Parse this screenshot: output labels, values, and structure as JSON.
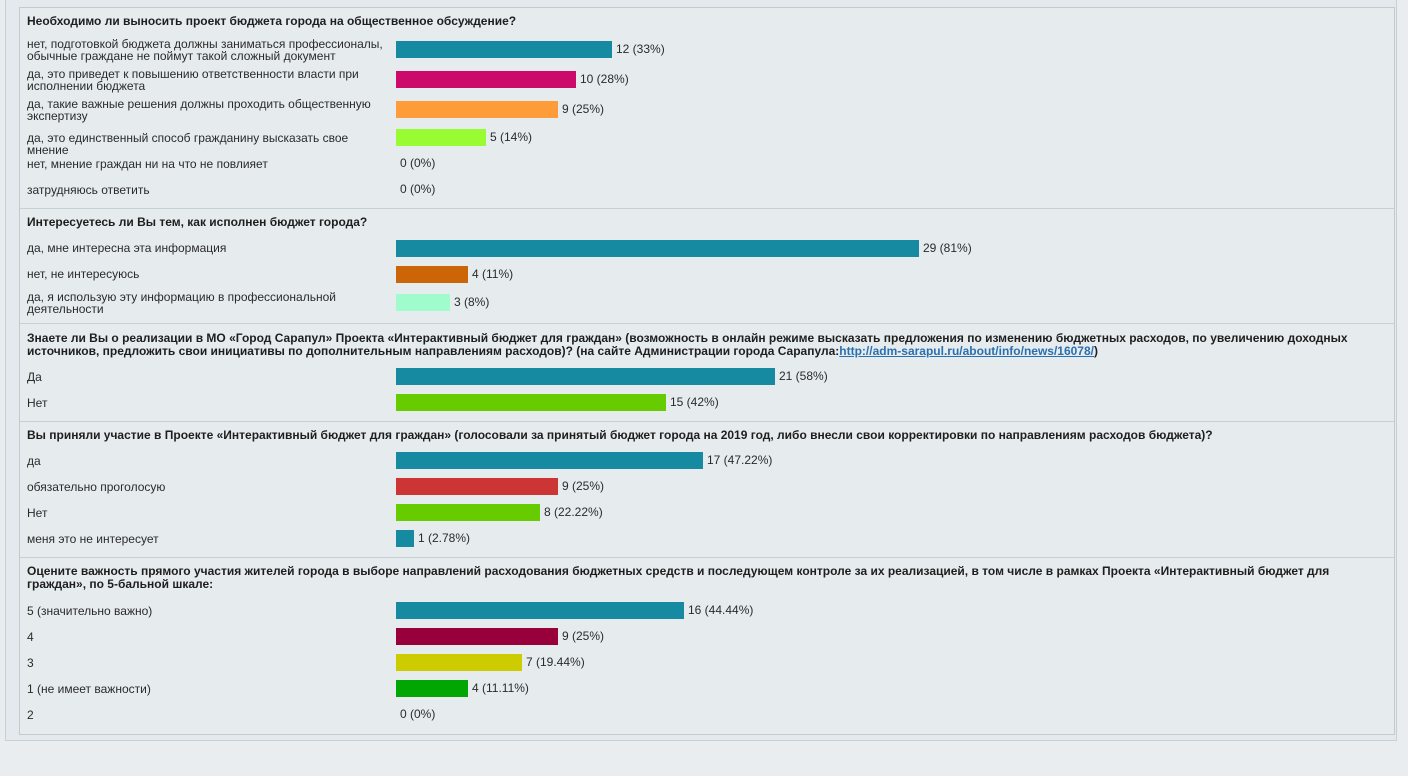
{
  "questions": [
    {
      "title": "Необходимо ли выносить проект бюджета города на общественное обсуждение?",
      "answers": [
        {
          "label": "нет, подготовкой бюджета должны заниматься профессионалы, обычные граждане не поймут такой сложный документ",
          "count": 12,
          "value_text": "12 (33%)",
          "color": "#168aa0"
        },
        {
          "label": "да, это приведет к повышению ответственности власти при исполнении бюджета",
          "count": 10,
          "value_text": "10 (28%)",
          "color": "#cc0a6c"
        },
        {
          "label": "да, такие важные решения должны проходить общественную экспертизу",
          "count": 9,
          "value_text": "9 (25%)",
          "color": "#fd9c39"
        },
        {
          "label": "да, это единственный способ гражданину высказать свое мнение",
          "count": 5,
          "value_text": "5 (14%)",
          "color": "#99fc32"
        },
        {
          "label": "нет, мнение граждан ни на что не повлияет",
          "count": 0,
          "value_text": "0 (0%)",
          "color": "#168aa0"
        },
        {
          "label": "затрудняюсь ответить",
          "count": 0,
          "value_text": "0 (0%)",
          "color": "#168aa0"
        }
      ]
    },
    {
      "title": "Интересуетесь ли Вы тем, как исполнен бюджет города?",
      "answers": [
        {
          "label": "да, мне интересна эта информация",
          "count": 29,
          "value_text": "29 (81%)",
          "color": "#168aa0"
        },
        {
          "label": "нет, не интересуюсь",
          "count": 4,
          "value_text": "4 (11%)",
          "color": "#cc6508"
        },
        {
          "label": "да, я использую эту информацию в профессиональной деятельности",
          "count": 3,
          "value_text": "3 (8%)",
          "color": "#a1fccd"
        }
      ]
    },
    {
      "title": "Знаете ли Вы о реализации в МО «Город Сарапул» Проекта «Интерактивный бюджет для граждан» (возможность в онлайн режиме высказать предложения по изменению бюджетных расходов, по увеличению доходных источников, предложить свои инициативы по дополнительным направлениям расходов)?  (на сайте Администрации города Сарапула:",
      "link": "http://adm-sarapul.ru/about/info/news/16078/",
      "title_suffix": ")",
      "answers": [
        {
          "label": "Да",
          "count": 21,
          "value_text": "21 (58%)",
          "color": "#168aa0"
        },
        {
          "label": "Нет",
          "count": 15,
          "value_text": "15 (42%)",
          "color": "#66cc00"
        }
      ]
    },
    {
      "title": "Вы приняли участие в Проекте «Интерактивный бюджет для граждан» (голосовали за принятый бюджет города на 2019 год, либо внесли свои корректировки по направлениям расходов бюджета)?",
      "answers": [
        {
          "label": "да",
          "count": 17,
          "value_text": "17 (47.22%)",
          "color": "#168aa0"
        },
        {
          "label": "обязательно проголосую",
          "count": 9,
          "value_text": "9 (25%)",
          "color": "#cc3534"
        },
        {
          "label": "Нет",
          "count": 8,
          "value_text": "8 (22.22%)",
          "color": "#66cc00"
        },
        {
          "label": "меня это не интересует",
          "count": 1,
          "value_text": "1 (2.78%)",
          "color": "#168aa0"
        }
      ]
    },
    {
      "title": "Оцените важность прямого участия жителей города в выборе направлений расходования бюджетных средств и последующем контроле за их реализацией, в том числе в рамках Проекта «Интерактивный бюджет для граждан», по 5-бальной шкале:",
      "answers": [
        {
          "label": "5 (значительно важно)",
          "count": 16,
          "value_text": "16 (44.44%)",
          "color": "#168aa0"
        },
        {
          "label": "4",
          "count": 9,
          "value_text": "9 (25%)",
          "color": "#98003b"
        },
        {
          "label": "3",
          "count": 7,
          "value_text": "7 (19.44%)",
          "color": "#cccc00"
        },
        {
          "label": "1 (не имеет важности)",
          "count": 4,
          "value_text": "4 (11.11%)",
          "color": "#01a602"
        },
        {
          "label": "2",
          "count": 0,
          "value_text": "0 (0%)",
          "color": "#168aa0"
        }
      ]
    }
  ]
}
